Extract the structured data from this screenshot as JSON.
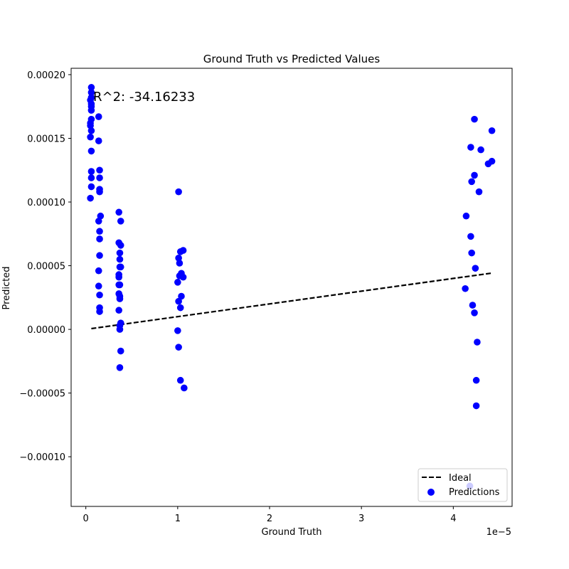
{
  "chart_data": {
    "type": "scatter",
    "title": "Ground Truth vs Predicted Values",
    "xlabel": "Ground Truth",
    "ylabel": "Predicted",
    "x_offset_label": "1e−5",
    "annotation": "R^2: -34.16233",
    "xlim": [
      -0.16,
      4.64
    ],
    "ylim": [
      -0.000139,
      0.000205
    ],
    "x_ticks": [
      0,
      1,
      2,
      3,
      4
    ],
    "x_tick_labels": [
      "0",
      "1",
      "2",
      "3",
      "4"
    ],
    "y_ticks": [
      -0.0001,
      -5e-05,
      0,
      5e-05,
      0.0001,
      0.00015,
      0.0002
    ],
    "y_tick_labels": [
      "−0.00010",
      "−0.00005",
      "0.00000",
      "0.00005",
      "0.00010",
      "0.00015",
      "0.00020"
    ],
    "grid": false,
    "legend_position": "lower-right",
    "series": [
      {
        "name": "Ideal",
        "kind": "line",
        "style": "dashed",
        "color": "#000000",
        "points": [
          [
            0.06,
            6e-07
          ],
          [
            4.41,
            4.41e-05
          ]
        ]
      },
      {
        "name": "Predictions",
        "kind": "scatter",
        "color": "#0000ff",
        "points": [
          [
            0.06,
            0.00019
          ],
          [
            0.06,
            0.000186
          ],
          [
            0.06,
            0.000182
          ],
          [
            0.05,
            0.00018
          ],
          [
            0.06,
            0.000177
          ],
          [
            0.06,
            0.000175
          ],
          [
            0.06,
            0.000172
          ],
          [
            0.06,
            0.000165
          ],
          [
            0.05,
            0.000162
          ],
          [
            0.05,
            0.00016
          ],
          [
            0.06,
            0.000156
          ],
          [
            0.05,
            0.000151
          ],
          [
            0.06,
            0.00014
          ],
          [
            0.06,
            0.000124
          ],
          [
            0.06,
            0.000119
          ],
          [
            0.06,
            0.000112
          ],
          [
            0.05,
            0.000103
          ],
          [
            0.14,
            0.000167
          ],
          [
            0.14,
            0.000148
          ],
          [
            0.15,
            0.000125
          ],
          [
            0.15,
            0.000119
          ],
          [
            0.15,
            0.00011
          ],
          [
            0.15,
            0.000108
          ],
          [
            0.16,
            8.9e-05
          ],
          [
            0.14,
            8.5e-05
          ],
          [
            0.15,
            7.7e-05
          ],
          [
            0.15,
            7.1e-05
          ],
          [
            0.15,
            5.8e-05
          ],
          [
            0.14,
            4.6e-05
          ],
          [
            0.14,
            3.4e-05
          ],
          [
            0.15,
            2.7e-05
          ],
          [
            0.15,
            1.7e-05
          ],
          [
            0.15,
            1.4e-05
          ],
          [
            0.36,
            9.2e-05
          ],
          [
            0.38,
            8.5e-05
          ],
          [
            0.36,
            6.8e-05
          ],
          [
            0.38,
            6.6e-05
          ],
          [
            0.37,
            6e-05
          ],
          [
            0.37,
            5.5e-05
          ],
          [
            0.37,
            4.9e-05
          ],
          [
            0.38,
            4.9e-05
          ],
          [
            0.36,
            4.3e-05
          ],
          [
            0.36,
            4.1e-05
          ],
          [
            0.36,
            3.5e-05
          ],
          [
            0.37,
            3.5e-05
          ],
          [
            0.36,
            2.8e-05
          ],
          [
            0.37,
            2.6e-05
          ],
          [
            0.37,
            2.4e-05
          ],
          [
            0.36,
            1.5e-05
          ],
          [
            0.38,
            5e-06
          ],
          [
            0.37,
            3e-06
          ],
          [
            0.37,
            0.0
          ],
          [
            0.38,
            -1.7e-05
          ],
          [
            0.37,
            -3e-05
          ],
          [
            1.01,
            0.000108
          ],
          [
            1.03,
            6.1e-05
          ],
          [
            1.06,
            6.2e-05
          ],
          [
            1.01,
            5.6e-05
          ],
          [
            1.02,
            5.2e-05
          ],
          [
            1.02,
            4.2e-05
          ],
          [
            1.04,
            4.4e-05
          ],
          [
            1.06,
            4.1e-05
          ],
          [
            1.0,
            3.7e-05
          ],
          [
            1.04,
            2.6e-05
          ],
          [
            1.01,
            2.2e-05
          ],
          [
            1.03,
            1.7e-05
          ],
          [
            1.0,
            -1e-06
          ],
          [
            1.01,
            -1.4e-05
          ],
          [
            1.03,
            -4e-05
          ],
          [
            1.07,
            -4.6e-05
          ],
          [
            4.23,
            0.000165
          ],
          [
            4.42,
            0.000156
          ],
          [
            4.19,
            0.000143
          ],
          [
            4.3,
            0.000141
          ],
          [
            4.42,
            0.000132
          ],
          [
            4.38,
            0.00013
          ],
          [
            4.23,
            0.000121
          ],
          [
            4.2,
            0.000116
          ],
          [
            4.28,
            0.000108
          ],
          [
            4.14,
            8.9e-05
          ],
          [
            4.19,
            7.3e-05
          ],
          [
            4.2,
            6e-05
          ],
          [
            4.24,
            4.8e-05
          ],
          [
            4.13,
            3.2e-05
          ],
          [
            4.21,
            1.9e-05
          ],
          [
            4.23,
            1.3e-05
          ],
          [
            4.26,
            -1e-05
          ],
          [
            4.25,
            -4e-05
          ],
          [
            4.25,
            -6e-05
          ],
          [
            4.18,
            -0.000123
          ]
        ]
      }
    ]
  }
}
